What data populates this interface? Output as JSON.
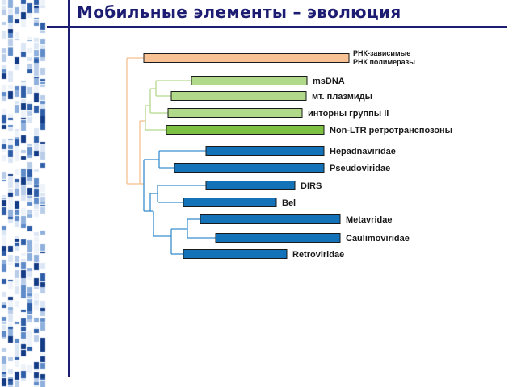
{
  "title": "Мобильные элементы – эволюция",
  "colors": {
    "accent": "#1c1c72",
    "orange": "#f8c294",
    "light_green": "#b0d98a",
    "green": "#7dc142",
    "blue": "#1472b8",
    "line_orange": "#f5c08e",
    "line_green": "#b5d98c",
    "line_blue": "#3a8fd0"
  },
  "tree": {
    "leaves": [
      {
        "label_lines": [
          "РНК-зависимые",
          "РНК полимеразы"
        ],
        "group": "orange"
      },
      {
        "label_lines": [
          "msDNA"
        ],
        "group": "light_green"
      },
      {
        "label_lines": [
          "мт. плазмиды"
        ],
        "group": "light_green"
      },
      {
        "label_lines": [
          "инторны группы II"
        ],
        "group": "light_green"
      },
      {
        "label_lines": [
          "Non-LTR ретротранспозоны"
        ],
        "group": "green"
      },
      {
        "label_lines": [
          "Hepadnaviridae"
        ],
        "group": "blue"
      },
      {
        "label_lines": [
          "Pseudoviridae"
        ],
        "group": "blue"
      },
      {
        "label_lines": [
          "DIRS"
        ],
        "group": "blue"
      },
      {
        "label_lines": [
          "Bel"
        ],
        "group": "blue"
      },
      {
        "label_lines": [
          "Metavridae"
        ],
        "group": "blue"
      },
      {
        "label_lines": [
          "Caulimoviridae"
        ],
        "group": "blue"
      },
      {
        "label_lines": [
          "Retroviridae"
        ],
        "group": "blue"
      }
    ]
  }
}
